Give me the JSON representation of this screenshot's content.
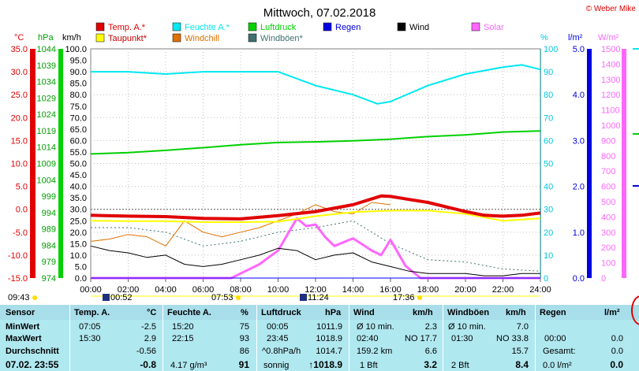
{
  "title": "Mittwoch, 07.02.2018",
  "copyright": "© Weber Mike",
  "colors": {
    "temp": "#e00000",
    "humidity": "#00e8f0",
    "pressure": "#00d000",
    "rain": "#0000ff",
    "wind": "#000000",
    "solar": "#ff66ff",
    "dewpoint": "#ffff00",
    "windchill": "#e07000",
    "gust": "#407070"
  },
  "legend": [
    {
      "label": "Temp. A.*",
      "color": "#e00000"
    },
    {
      "label": "Feuchte A.*",
      "color": "#00e8f0"
    },
    {
      "label": "Luftdruck",
      "color": "#00d000"
    },
    {
      "label": "Regen",
      "color": "#0000e0"
    },
    {
      "label": "Wind",
      "color": "#000000"
    },
    {
      "label": "Solar",
      "color": "#ff66ff"
    },
    {
      "label": "Taupunkt*",
      "color": "#ffff00"
    },
    {
      "label": "Windchill",
      "color": "#e07000"
    },
    {
      "label": "Windböen*",
      "color": "#407070"
    }
  ],
  "axis_units": {
    "temp": "°C",
    "pressure": "hPa",
    "wind": "km/h",
    "humidity": "%",
    "rain": "l/m²",
    "solar": "W/m²"
  },
  "chart_data": {
    "type": "line",
    "x_ticks": [
      "00:00",
      "02:00",
      "04:00",
      "06:00",
      "08:00",
      "10:00",
      "12:00",
      "14:00",
      "16:00",
      "18:00",
      "20:00",
      "22:00",
      "24:00"
    ],
    "xlim_hours": [
      0,
      24
    ],
    "ylim_temp": [
      -15,
      35
    ],
    "temp_ticks": [
      "35.0",
      "30.0",
      "25.0",
      "20.0",
      "15.0",
      "10.0",
      "5.0",
      "0.0",
      "-5.0",
      "-10.0",
      "-15.0"
    ],
    "pressure_ticks": [
      "1044",
      "1039",
      "1034",
      "1029",
      "1024",
      "1019",
      "1014",
      "1009",
      "1004",
      "999",
      "994",
      "989",
      "984",
      "979",
      "974"
    ],
    "wind_ticks": [
      "100.0",
      "95.0",
      "90.0",
      "85.0",
      "80.0",
      "75.0",
      "70.0",
      "65.0",
      "60.0",
      "55.0",
      "50.0",
      "45.0",
      "40.0",
      "35.0",
      "30.0",
      "25.0",
      "20.0",
      "15.0",
      "10.0",
      "5.0",
      "0.0"
    ],
    "humidity_ticks": [
      "100",
      "90",
      "80",
      "70",
      "60",
      "50",
      "40",
      "30",
      "20",
      "10",
      "0"
    ],
    "rain_ticks": [
      "5.0",
      "4.0",
      "3.0",
      "2.0",
      "1.0",
      "0.0"
    ],
    "solar_ticks": [
      "1500",
      "1400",
      "1300",
      "1200",
      "1100",
      "1000",
      "900",
      "800",
      "700",
      "600",
      "500",
      "400",
      "300",
      "200",
      "100",
      "0"
    ],
    "series": [
      {
        "name": "Temp. A.*",
        "axis": "temp",
        "x": [
          0,
          2,
          4,
          6,
          8,
          10,
          12,
          14,
          15.5,
          16,
          18,
          20,
          21,
          22,
          23,
          24
        ],
        "values": [
          -1.3,
          -1.5,
          -1.6,
          -2.0,
          -2.1,
          -1.4,
          -0.5,
          1.0,
          2.9,
          2.8,
          1.5,
          -0.5,
          -1.3,
          -1.5,
          -1.3,
          -0.8
        ]
      },
      {
        "name": "Taupunkt*",
        "axis": "temp",
        "x": [
          0,
          2,
          4,
          6,
          8,
          10,
          12,
          14,
          16,
          18,
          20,
          22,
          24
        ],
        "values": [
          -2.5,
          -2.6,
          -2.6,
          -2.8,
          -2.8,
          -2.7,
          -1.5,
          -0.6,
          -0.3,
          -0.3,
          -1.0,
          -2.5,
          -2.0
        ]
      },
      {
        "name": "Feuchte A.*",
        "axis": "humidity",
        "x": [
          0,
          2,
          4,
          6,
          8,
          10,
          11,
          12,
          14,
          15.3,
          16,
          18,
          20,
          22,
          23,
          24
        ],
        "values": [
          90,
          90,
          89,
          90,
          90,
          90,
          87,
          84,
          80,
          76,
          77,
          84,
          89,
          92,
          93,
          91
        ]
      },
      {
        "name": "Luftdruck",
        "axis": "pressure",
        "x": [
          0,
          2,
          4,
          6,
          8,
          10,
          12,
          14,
          16,
          18,
          20,
          22,
          24
        ],
        "values": [
          1011.9,
          1012.3,
          1013.0,
          1013.8,
          1014.7,
          1015.4,
          1015.6,
          1015.9,
          1016.4,
          1017.2,
          1017.7,
          1018.6,
          1018.9
        ]
      },
      {
        "name": "Wind",
        "axis": "wind",
        "x": [
          0,
          1,
          2,
          3,
          4,
          5,
          6,
          7,
          8,
          9,
          10,
          11,
          12,
          13,
          14,
          15,
          16,
          17,
          18,
          19,
          20,
          21,
          22,
          23,
          24
        ],
        "values": [
          14,
          12,
          11,
          9,
          10,
          6,
          5,
          6,
          8,
          10,
          13,
          12,
          8,
          10,
          11,
          7,
          5,
          3,
          2,
          2,
          2,
          1,
          1,
          2,
          2
        ]
      },
      {
        "name": "Windchill",
        "axis": "wind",
        "x": [
          0,
          1,
          2,
          3,
          4,
          5,
          6,
          7,
          8,
          9,
          10,
          11,
          12,
          13,
          14,
          15,
          16
        ],
        "values": [
          16,
          17,
          19,
          18,
          14,
          25,
          20,
          18,
          20,
          22,
          25,
          28,
          32,
          29,
          28,
          33,
          32
        ]
      },
      {
        "name": "Windböen*",
        "axis": "wind",
        "x": [
          0,
          2,
          4,
          6,
          8,
          10,
          12,
          14,
          16,
          18,
          20,
          22,
          24
        ],
        "values": [
          22,
          22,
          20,
          14,
          16,
          20,
          22,
          25,
          15,
          8,
          7,
          4,
          3
        ]
      },
      {
        "name": "Solar",
        "axis": "solar",
        "x": [
          0,
          7.5,
          8,
          9,
          10,
          11,
          11.5,
          12,
          12.5,
          13,
          14,
          15,
          15.5,
          16,
          16.8,
          17.6,
          18,
          24
        ],
        "values": [
          0,
          0,
          30,
          90,
          180,
          390,
          340,
          350,
          270,
          210,
          260,
          180,
          150,
          250,
          80,
          0,
          0,
          0
        ]
      },
      {
        "name": "Regen",
        "axis": "rain",
        "x": [
          0,
          24
        ],
        "values": [
          0,
          0
        ]
      }
    ]
  },
  "below_axis": {
    "sunrise": "07:53",
    "sunset": "17:36",
    "day_start": "09:43",
    "moonset": "00:52",
    "moonrise": "11:24"
  },
  "table": {
    "headers": {
      "sensor": "Sensor",
      "temp": "Temp. A.",
      "temp_unit": "°C",
      "hum": "Feuchte A.",
      "hum_unit": "%",
      "press": "Luftdruck",
      "press_unit": "hPa",
      "wind": "Wind",
      "wind_unit": "km/h",
      "gust": "Windböen",
      "gust_unit": "km/h",
      "rain": "Regen",
      "rain_unit": "l/m²"
    },
    "labels": [
      "MinWert",
      "MaxWert",
      "Durchschnitt",
      "07.02. 23:55"
    ],
    "temp": {
      "min_t": "07:05",
      "min_v": "-2.5",
      "max_t": "15:30",
      "max_v": "2.9",
      "avg": "-0.56",
      "now": "-0.8"
    },
    "hum": {
      "min_t": "15:20",
      "min_v": "75",
      "max_t": "22:15",
      "max_v": "93",
      "avg": "86",
      "now_note": "4.17 g/m³",
      "now": "91"
    },
    "press": {
      "min_t": "00:05",
      "min_v": "1011.9",
      "max_t": "23:45",
      "max_v": "1018.9",
      "avg_note": "^0.8hPa/h",
      "avg": "1014.7",
      "now_note": "sonnig",
      "now": "↑1018.9"
    },
    "wind": {
      "r1_note": "Ø 10 min.",
      "r1_v": "2.3",
      "r2_t": "02:40",
      "r2_note": "NO 17.7",
      "r3_note": "159.2 km",
      "r3_v": "6.6",
      "r4_note": "1 Bft",
      "r4_v": "3.2"
    },
    "gust": {
      "r1_note": "Ø 10 min.",
      "r1_v": "7.0",
      "r2_t": "01:30",
      "r2_note": "NO 33.8",
      "r3_v": "15.7",
      "r4_note": "2 Bft",
      "r4_v": "8.4"
    },
    "rain": {
      "r2_t": "00:00",
      "r2_v": "0.0",
      "r3_note": "Gesamt:",
      "r3_v": "0.0",
      "r4_note": "0.0 l/m²",
      "r4_v": "0.0"
    }
  }
}
